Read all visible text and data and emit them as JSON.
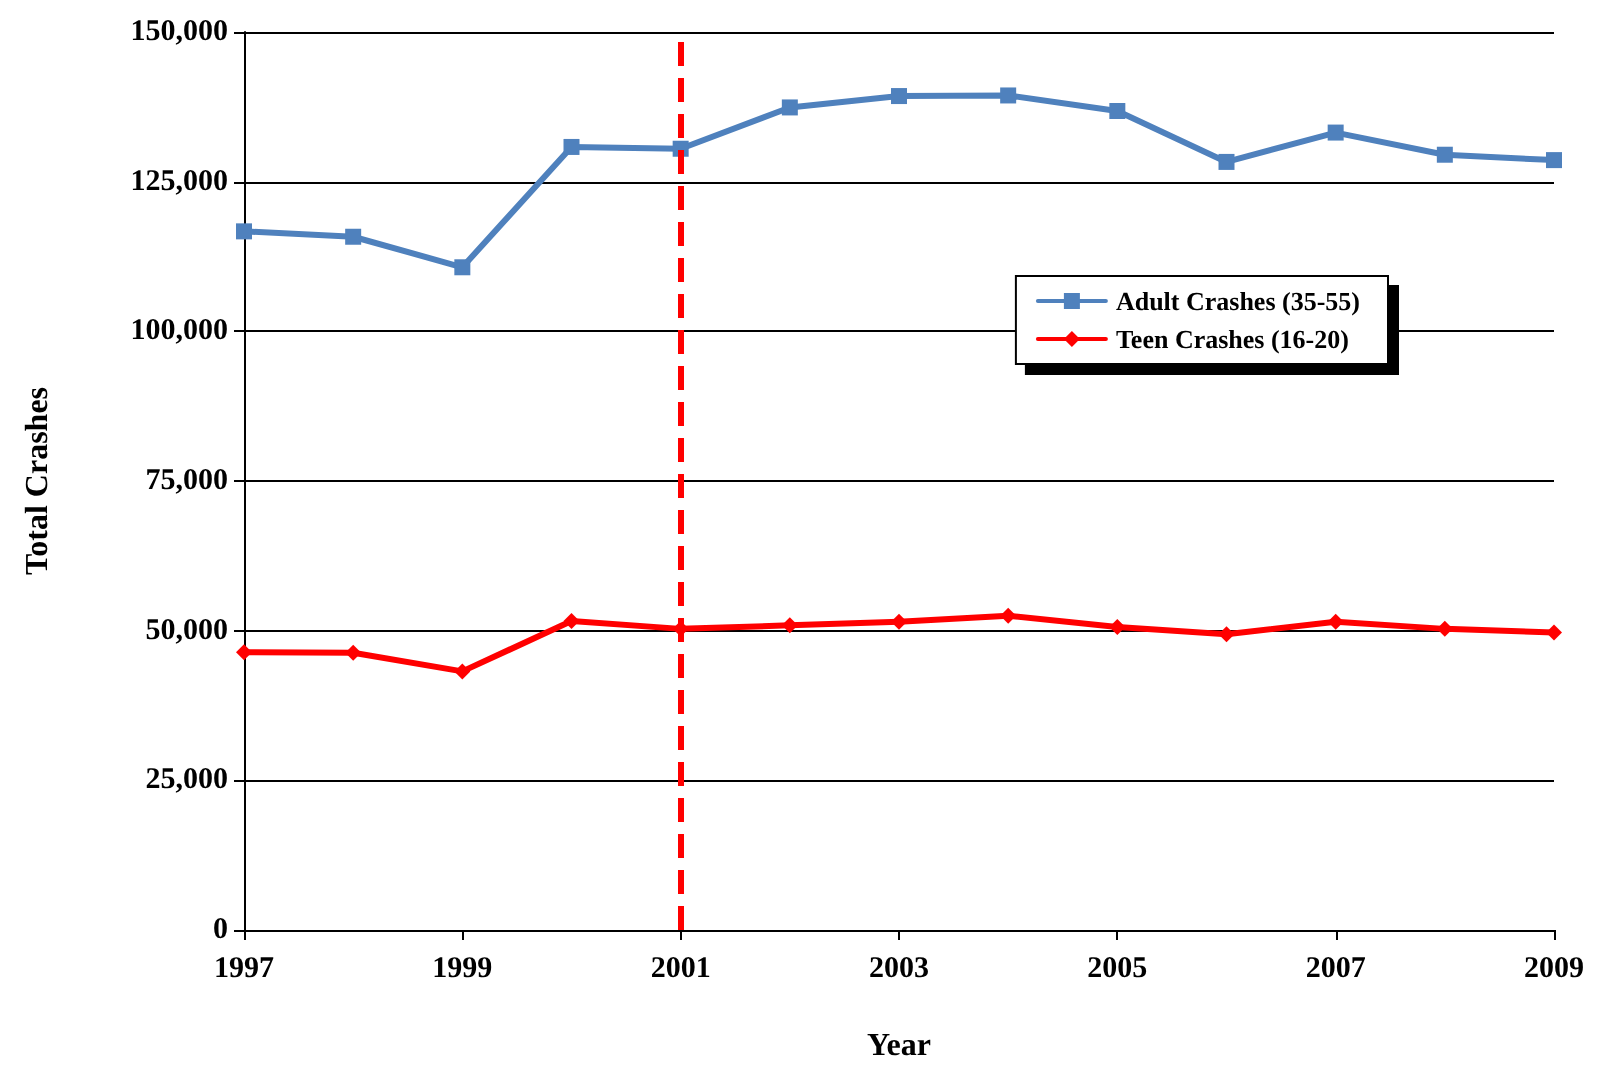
{
  "chart_data": {
    "type": "line",
    "xlabel": "Year",
    "ylabel": "Total Crashes",
    "x": [
      1997,
      1998,
      1999,
      2000,
      2001,
      2002,
      2003,
      2004,
      2005,
      2006,
      2007,
      2008,
      2009
    ],
    "series": [
      {
        "name": "Adult Crashes (35-55)",
        "color": "#4f81bd",
        "marker": "square",
        "values": [
          116700,
          115800,
          110700,
          130800,
          130500,
          137400,
          139300,
          139400,
          136800,
          128300,
          133200,
          129500,
          128600
        ]
      },
      {
        "name": "Teen Crashes (16-20)",
        "color": "#ff0000",
        "marker": "diamond",
        "values": [
          46400,
          46300,
          43200,
          51600,
          50300,
          50900,
          51500,
          52500,
          50600,
          49400,
          51500,
          50300,
          49700
        ]
      }
    ],
    "xlim": [
      1997,
      2009
    ],
    "xticks": [
      1997,
      1999,
      2001,
      2003,
      2005,
      2007,
      2009
    ],
    "ylim": [
      0,
      150000
    ],
    "yticks": [
      0,
      {
        "value": 25000,
        "label": "25,000"
      },
      {
        "value": 50000,
        "label": "50,000"
      },
      {
        "value": 75000,
        "label": "75,000"
      },
      {
        "value": 100000,
        "label": "100,000"
      },
      {
        "value": 125000,
        "label": "125,000"
      },
      {
        "value": 150000,
        "label": "150,000"
      }
    ],
    "ref_lines": [
      {
        "axis": "x",
        "value": 2001,
        "color": "#ff0000",
        "line_style": "dashed"
      }
    ],
    "grid": "y",
    "legend": "right"
  }
}
